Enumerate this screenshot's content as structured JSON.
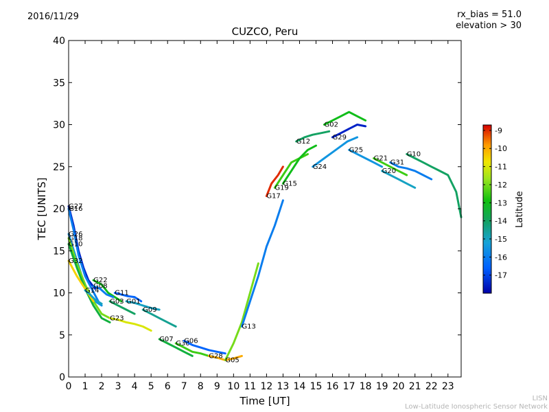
{
  "header": {
    "date": "2016/11/29",
    "rx_bias": "rx_bias = 51.0",
    "elevation": "elevation > 30",
    "title": "CUZCO, Peru"
  },
  "footer": {
    "network_short": "LISN",
    "network_long": "Low-Latitude Ionospheric Sensor Network"
  },
  "chart_data": {
    "type": "scatter",
    "title": "CUZCO, Peru",
    "xlabel": "Time [UT]",
    "ylabel": "TEC [UNITS]",
    "xlim": [
      0,
      23.8
    ],
    "ylim": [
      0,
      40
    ],
    "xticks": [
      0,
      1,
      2,
      3,
      4,
      5,
      6,
      7,
      8,
      9,
      10,
      11,
      12,
      13,
      14,
      15,
      16,
      17,
      18,
      19,
      20,
      21,
      22,
      23
    ],
    "yticks": [
      0,
      5,
      10,
      15,
      20,
      25,
      30,
      35,
      40
    ],
    "colorbar": {
      "label": "Latitude",
      "range": [
        -18,
        -8.7
      ],
      "ticks": [
        -9,
        -10,
        -11,
        -12,
        -13,
        -14,
        -15,
        -16,
        -17
      ]
    },
    "series": [
      {
        "name": "G27",
        "lat": -17.5,
        "x": [
          0.0,
          0.3,
          0.6,
          0.9,
          1.2,
          1.6
        ],
        "y": [
          20.3,
          18.0,
          15.0,
          13.0,
          11.5,
          10.5
        ]
      },
      {
        "name": "G16",
        "lat": -16.0,
        "x": [
          0.0,
          0.3,
          0.6,
          1.0,
          1.4,
          1.8
        ],
        "y": [
          20.0,
          17.5,
          14.5,
          12.0,
          10.5,
          9.0
        ]
      },
      {
        "name": "G26",
        "lat": -15.5,
        "x": [
          0.0,
          0.4,
          0.8,
          1.2,
          1.6,
          2.0
        ],
        "y": [
          17.0,
          14.5,
          12.0,
          10.0,
          9.0,
          8.5
        ]
      },
      {
        "name": "G18",
        "lat": -12.0,
        "x": [
          0.0,
          0.5,
          1.0,
          1.5,
          2.0,
          2.5
        ],
        "y": [
          16.5,
          13.5,
          11.0,
          9.0,
          7.5,
          7.0
        ]
      },
      {
        "name": "G10",
        "lat": -13.5,
        "x": [
          0.0,
          0.5,
          1.0,
          1.5,
          2.0,
          2.5
        ],
        "y": [
          15.8,
          13.0,
          10.5,
          8.5,
          7.0,
          6.5
        ]
      },
      {
        "name": "G32",
        "lat": -10.5,
        "x": [
          0.0,
          0.5,
          1.0,
          1.5
        ],
        "y": [
          13.8,
          12.0,
          10.5,
          9.0
        ]
      },
      {
        "name": "G22",
        "lat": -13.0,
        "x": [
          1.5,
          2.0,
          2.4,
          2.8,
          3.2
        ],
        "y": [
          11.5,
          11.0,
          10.0,
          9.5,
          9.0
        ]
      },
      {
        "name": "G08",
        "lat": -16.0,
        "x": [
          1.5,
          1.9,
          2.3,
          2.7
        ],
        "y": [
          10.8,
          10.5,
          9.8,
          9.5
        ]
      },
      {
        "name": "G14",
        "lat": -15.0,
        "x": [
          1.0,
          1.3,
          1.6,
          2.0
        ],
        "y": [
          10.3,
          9.8,
          9.2,
          8.7
        ]
      },
      {
        "name": "G11",
        "lat": -16.5,
        "x": [
          2.8,
          3.2,
          3.6,
          4.0,
          4.4
        ],
        "y": [
          10.0,
          9.8,
          9.6,
          9.5,
          9.0
        ]
      },
      {
        "name": "G03",
        "lat": -14.0,
        "x": [
          2.5,
          3.0,
          3.5,
          4.0
        ],
        "y": [
          9.0,
          8.5,
          8.0,
          7.5
        ]
      },
      {
        "name": "G01",
        "lat": -15.0,
        "x": [
          3.5,
          4.0,
          4.5,
          5.0,
          5.5
        ],
        "y": [
          9.0,
          8.8,
          8.5,
          8.2,
          8.0
        ]
      },
      {
        "name": "G23",
        "lat": -11.0,
        "x": [
          2.5,
          3.0,
          3.5,
          4.0,
          4.5,
          5.0
        ],
        "y": [
          7.0,
          6.8,
          6.5,
          6.3,
          6.0,
          5.5
        ]
      },
      {
        "name": "G09",
        "lat": -14.5,
        "x": [
          4.5,
          5.0,
          5.5,
          6.0,
          6.5
        ],
        "y": [
          8.0,
          7.5,
          7.0,
          6.5,
          6.0
        ]
      },
      {
        "name": "G07",
        "lat": -13.5,
        "x": [
          5.5,
          6.0,
          6.5,
          7.0,
          7.5
        ],
        "y": [
          4.5,
          4.0,
          3.5,
          3.0,
          2.5
        ]
      },
      {
        "name": "G30",
        "lat": -12.5,
        "x": [
          6.5,
          7.0,
          7.5,
          8.0,
          8.5,
          9.0
        ],
        "y": [
          4.0,
          3.5,
          3.0,
          2.8,
          2.5,
          2.3
        ]
      },
      {
        "name": "G06",
        "lat": -16.5,
        "x": [
          7.0,
          7.5,
          8.0,
          8.5,
          9.0,
          9.5
        ],
        "y": [
          4.3,
          3.8,
          3.5,
          3.2,
          3.0,
          2.8
        ]
      },
      {
        "name": "G28",
        "lat": -10.0,
        "x": [
          8.5,
          9.0,
          9.5,
          10.0,
          10.5
        ],
        "y": [
          2.5,
          2.3,
          2.0,
          2.2,
          2.5
        ]
      },
      {
        "name": "G05",
        "lat": -12.0,
        "x": [
          9.5,
          10.0,
          10.5,
          11.0,
          11.5
        ],
        "y": [
          2.0,
          4.0,
          6.5,
          10.0,
          13.5
        ]
      },
      {
        "name": "G13",
        "lat": -16.0,
        "x": [
          10.5,
          11.0,
          11.5,
          12.0,
          12.5,
          13.0
        ],
        "y": [
          6.0,
          9.0,
          12.0,
          15.5,
          18.0,
          21.0
        ]
      },
      {
        "name": "G17",
        "lat": -9.0,
        "x": [
          12.0,
          12.3,
          12.7,
          13.0
        ],
        "y": [
          21.5,
          23.0,
          24.0,
          25.0
        ]
      },
      {
        "name": "G19",
        "lat": -12.5,
        "x": [
          12.5,
          13.0,
          13.5,
          14.0,
          14.5
        ],
        "y": [
          22.5,
          24.0,
          25.5,
          26.0,
          26.5
        ]
      },
      {
        "name": "G15",
        "lat": -13.0,
        "x": [
          13.0,
          13.5,
          14.0,
          14.5,
          15.0
        ],
        "y": [
          23.0,
          24.5,
          26.0,
          27.0,
          27.5
        ]
      },
      {
        "name": "G12",
        "lat": -14.0,
        "x": [
          13.8,
          14.3,
          14.8,
          15.3,
          15.8
        ],
        "y": [
          28.0,
          28.5,
          28.8,
          29.0,
          29.2
        ]
      },
      {
        "name": "G24",
        "lat": -15.5,
        "x": [
          14.8,
          15.5,
          16.2,
          16.9,
          17.5
        ],
        "y": [
          25.0,
          26.0,
          27.0,
          28.0,
          28.5
        ]
      },
      {
        "name": "G02",
        "lat": -13.0,
        "x": [
          15.5,
          16.0,
          16.5,
          17.0,
          17.5,
          18.0
        ],
        "y": [
          30.0,
          30.5,
          31.0,
          31.5,
          31.0,
          30.5
        ]
      },
      {
        "name": "G29",
        "lat": -17.5,
        "x": [
          16.0,
          16.5,
          17.0,
          17.5,
          18.0
        ],
        "y": [
          28.5,
          29.0,
          29.5,
          30.0,
          29.8
        ]
      },
      {
        "name": "G25",
        "lat": -15.5,
        "x": [
          17.0,
          17.5,
          18.0,
          18.5,
          19.0
        ],
        "y": [
          27.0,
          26.5,
          26.0,
          25.5,
          25.0
        ]
      },
      {
        "name": "G21",
        "lat": -12.5,
        "x": [
          18.5,
          19.0,
          19.5,
          20.0,
          20.5
        ],
        "y": [
          26.0,
          25.5,
          25.0,
          24.5,
          24.0
        ]
      },
      {
        "name": "G31",
        "lat": -16.0,
        "x": [
          19.5,
          20.0,
          20.5,
          21.0,
          21.5,
          22.0
        ],
        "y": [
          25.5,
          25.0,
          24.8,
          24.5,
          24.0,
          23.5
        ]
      },
      {
        "name": "G20",
        "lat": -15.0,
        "x": [
          19.0,
          19.5,
          20.0,
          20.5,
          21.0
        ],
        "y": [
          24.5,
          24.0,
          23.5,
          23.0,
          22.5
        ]
      },
      {
        "name": "G10",
        "lat": -14.0,
        "x": [
          20.5,
          21.0,
          21.5,
          22.0,
          22.5,
          23.0,
          23.5,
          23.8
        ],
        "y": [
          26.5,
          26.0,
          25.5,
          25.0,
          24.5,
          24.0,
          22.0,
          19.0
        ]
      }
    ]
  }
}
